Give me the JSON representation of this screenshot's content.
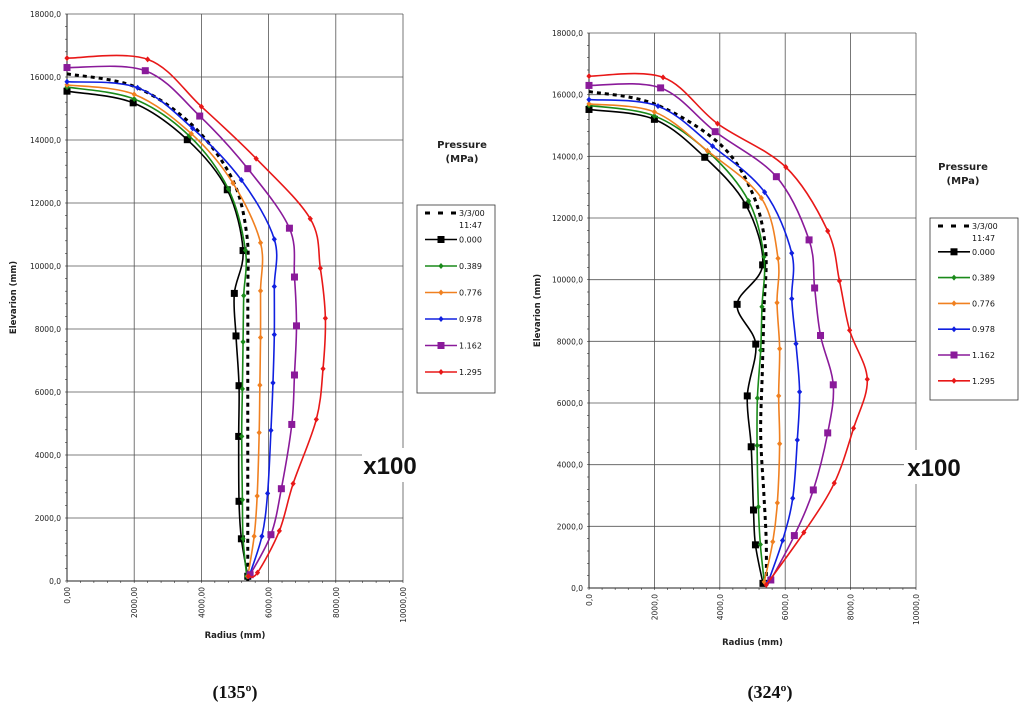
{
  "chart_data": [
    {
      "type": "line",
      "title": "(135º)",
      "xlabel": "Radius (mm)",
      "ylabel": "Elevarion (mm)",
      "xlim": [
        0,
        10000
      ],
      "ylim": [
        0,
        18000
      ],
      "grid": true,
      "xtick_labels": [
        "0,00",
        "2000,00",
        "4000,00",
        "6000,00",
        "8000,00",
        "10000,00"
      ],
      "ytick_labels": [
        "0,0",
        "2000,0",
        "4000,0",
        "6000,0",
        "8000,0",
        "10000,0",
        "12000,0",
        "14000,0",
        "16000,0",
        "18000,0"
      ],
      "legend_title": [
        "Pressure",
        "(MPa)"
      ],
      "legend_position": "right",
      "annotation": "x100",
      "series": [
        {
          "name": [
            "3/3/00",
            "11:47"
          ],
          "color": "#000000",
          "dashed": true,
          "marker": "none",
          "points": [
            [
              0,
              16100
            ],
            [
              2000,
              15700
            ],
            [
              3700,
              14500
            ],
            [
              4900,
              12800
            ],
            [
              5350,
              11000
            ],
            [
              5380,
              9000
            ],
            [
              5380,
              6000
            ],
            [
              5380,
              3000
            ],
            [
              5380,
              0
            ]
          ]
        },
        {
          "name": [
            "0.000"
          ],
          "color": "#000000",
          "dashed": false,
          "marker": "square",
          "points": [
            [
              0,
              15550
            ],
            [
              1970,
              15180
            ],
            [
              3580,
              14010
            ],
            [
              4770,
              12420
            ],
            [
              5240,
              10490
            ],
            [
              4980,
              9130
            ],
            [
              5030,
              7780
            ],
            [
              5120,
              6200
            ],
            [
              5110,
              4590
            ],
            [
              5120,
              2530
            ],
            [
              5190,
              1340
            ],
            [
              5380,
              150
            ]
          ]
        },
        {
          "name": [
            "0.389"
          ],
          "color": "#1a8a1a",
          "dashed": false,
          "marker": "diamond",
          "points": [
            [
              0,
              15680
            ],
            [
              2000,
              15300
            ],
            [
              3640,
              14130
            ],
            [
              4800,
              12450
            ],
            [
              5310,
              10500
            ],
            [
              5260,
              9060
            ],
            [
              5240,
              7590
            ],
            [
              5220,
              6100
            ],
            [
              5200,
              4590
            ],
            [
              5220,
              2580
            ],
            [
              5240,
              1340
            ],
            [
              5350,
              150
            ]
          ]
        },
        {
          "name": [
            "0.776"
          ],
          "color": "#f08020",
          "dashed": false,
          "marker": "diamond",
          "points": [
            [
              0,
              15750
            ],
            [
              2000,
              15450
            ],
            [
              3700,
              14200
            ],
            [
              4940,
              12630
            ],
            [
              5760,
              10740
            ],
            [
              5760,
              9210
            ],
            [
              5760,
              7730
            ],
            [
              5740,
              6220
            ],
            [
              5720,
              4710
            ],
            [
              5660,
              2700
            ],
            [
              5570,
              1420
            ],
            [
              5380,
              150
            ]
          ]
        },
        {
          "name": [
            "0.978"
          ],
          "color": "#1020e0",
          "dashed": false,
          "marker": "diamond",
          "points": [
            [
              0,
              15850
            ],
            [
              2100,
              15660
            ],
            [
              3740,
              14370
            ],
            [
              5190,
              12730
            ],
            [
              6170,
              10850
            ],
            [
              6170,
              9350
            ],
            [
              6170,
              7820
            ],
            [
              6130,
              6290
            ],
            [
              6070,
              4780
            ],
            [
              5970,
              2780
            ],
            [
              5800,
              1420
            ],
            [
              5420,
              150
            ]
          ]
        },
        {
          "name": [
            "1.162"
          ],
          "color": "#8a1a9a",
          "dashed": false,
          "marker": "square",
          "points": [
            [
              0,
              16300
            ],
            [
              2330,
              16200
            ],
            [
              3950,
              14760
            ],
            [
              5380,
              13090
            ],
            [
              6620,
              11200
            ],
            [
              6770,
              9650
            ],
            [
              6830,
              8100
            ],
            [
              6770,
              6540
            ],
            [
              6690,
              4970
            ],
            [
              6380,
              2930
            ],
            [
              6070,
              1470
            ],
            [
              5450,
              200
            ]
          ]
        },
        {
          "name": [
            "1.295"
          ],
          "color": "#e81818",
          "dashed": false,
          "marker": "diamond",
          "points": [
            [
              0,
              16600
            ],
            [
              2400,
              16560
            ],
            [
              4000,
              15060
            ],
            [
              5630,
              13410
            ],
            [
              7240,
              11500
            ],
            [
              7540,
              9930
            ],
            [
              7690,
              8340
            ],
            [
              7620,
              6740
            ],
            [
              7420,
              5130
            ],
            [
              6730,
              3090
            ],
            [
              6320,
              1590
            ],
            [
              5670,
              265
            ],
            [
              5400,
              150
            ]
          ]
        }
      ]
    },
    {
      "type": "line",
      "title": "(324º)",
      "xlabel": "Radius (mm)",
      "ylabel": "Elevarion (mm)",
      "xlim": [
        0,
        10000
      ],
      "ylim": [
        0,
        18000
      ],
      "grid": true,
      "xtick_labels": [
        "0,0",
        "2000,0",
        "4000,0",
        "6000,0",
        "8000,0",
        "10000,0"
      ],
      "ytick_labels": [
        "0,0",
        "2000,0",
        "4000,0",
        "6000,0",
        "8000,0",
        "10000,0",
        "12000,0",
        "14000,0",
        "16000,0",
        "18000,0"
      ],
      "legend_title": [
        "Pressure",
        "(MPa)"
      ],
      "legend_position": "right",
      "annotation": "x100",
      "series": [
        {
          "name": [
            "3/3/00",
            "11:47"
          ],
          "color": "#000000",
          "dashed": true,
          "marker": "none",
          "points": [
            [
              0,
              16100
            ],
            [
              2000,
              15700
            ],
            [
              4000,
              14400
            ],
            [
              5000,
              12800
            ],
            [
              5400,
              11000
            ],
            [
              5350,
              9000
            ],
            [
              5300,
              7000
            ],
            [
              5250,
              5000
            ],
            [
              5350,
              3000
            ],
            [
              5420,
              1500
            ],
            [
              5420,
              0
            ]
          ]
        },
        {
          "name": [
            "0.000"
          ],
          "color": "#000000",
          "dashed": false,
          "marker": "square",
          "points": [
            [
              0,
              15520
            ],
            [
              2000,
              15200
            ],
            [
              3540,
              13970
            ],
            [
              4800,
              12420
            ],
            [
              5310,
              10480
            ],
            [
              4530,
              9200
            ],
            [
              5100,
              7910
            ],
            [
              4840,
              6230
            ],
            [
              4960,
              4580
            ],
            [
              5030,
              2530
            ],
            [
              5090,
              1400
            ],
            [
              5320,
              150
            ]
          ]
        },
        {
          "name": [
            "0.389"
          ],
          "color": "#1a8a1a",
          "dashed": false,
          "marker": "diamond",
          "points": [
            [
              0,
              15650
            ],
            [
              2000,
              15310
            ],
            [
              3650,
              14140
            ],
            [
              4880,
              12550
            ],
            [
              5350,
              10740
            ],
            [
              5290,
              9120
            ],
            [
              5250,
              7710
            ],
            [
              5150,
              6160
            ],
            [
              5140,
              4620
            ],
            [
              5180,
              2630
            ],
            [
              5240,
              1410
            ],
            [
              5360,
              200
            ]
          ]
        },
        {
          "name": [
            "0.776"
          ],
          "color": "#f08020",
          "dashed": false,
          "marker": "diamond",
          "points": [
            [
              0,
              15700
            ],
            [
              2000,
              15440
            ],
            [
              3620,
              14180
            ],
            [
              5270,
              12650
            ],
            [
              5780,
              10690
            ],
            [
              5750,
              9250
            ],
            [
              5830,
              7760
            ],
            [
              5800,
              6230
            ],
            [
              5830,
              4680
            ],
            [
              5760,
              2760
            ],
            [
              5620,
              1500
            ],
            [
              5360,
              200
            ]
          ]
        },
        {
          "name": [
            "0.978"
          ],
          "color": "#1020e0",
          "dashed": false,
          "marker": "diamond",
          "points": [
            [
              0,
              15840
            ],
            [
              2110,
              15630
            ],
            [
              3780,
              14330
            ],
            [
              5370,
              12840
            ],
            [
              6200,
              10860
            ],
            [
              6200,
              9380
            ],
            [
              6330,
              7920
            ],
            [
              6440,
              6360
            ],
            [
              6370,
              4800
            ],
            [
              6230,
              2910
            ],
            [
              5920,
              1540
            ],
            [
              5480,
              200
            ]
          ]
        },
        {
          "name": [
            "1.162"
          ],
          "color": "#8a1a9a",
          "dashed": false,
          "marker": "square",
          "points": [
            [
              0,
              16300
            ],
            [
              2190,
              16220
            ],
            [
              3860,
              14800
            ],
            [
              5730,
              13340
            ],
            [
              6730,
              11290
            ],
            [
              6900,
              9730
            ],
            [
              7080,
              8190
            ],
            [
              7470,
              6590
            ],
            [
              7300,
              5030
            ],
            [
              6860,
              3180
            ],
            [
              6280,
              1700
            ],
            [
              5560,
              260
            ]
          ]
        },
        {
          "name": [
            "1.295"
          ],
          "color": "#e81818",
          "dashed": false,
          "marker": "diamond",
          "points": [
            [
              0,
              16600
            ],
            [
              2265,
              16560
            ],
            [
              3930,
              15060
            ],
            [
              6020,
              13650
            ],
            [
              7300,
              11580
            ],
            [
              7660,
              9960
            ],
            [
              7970,
              8360
            ],
            [
              8510,
              6770
            ],
            [
              8090,
              5180
            ],
            [
              7500,
              3400
            ],
            [
              6570,
              1800
            ],
            [
              5420,
              100
            ]
          ]
        }
      ]
    }
  ]
}
